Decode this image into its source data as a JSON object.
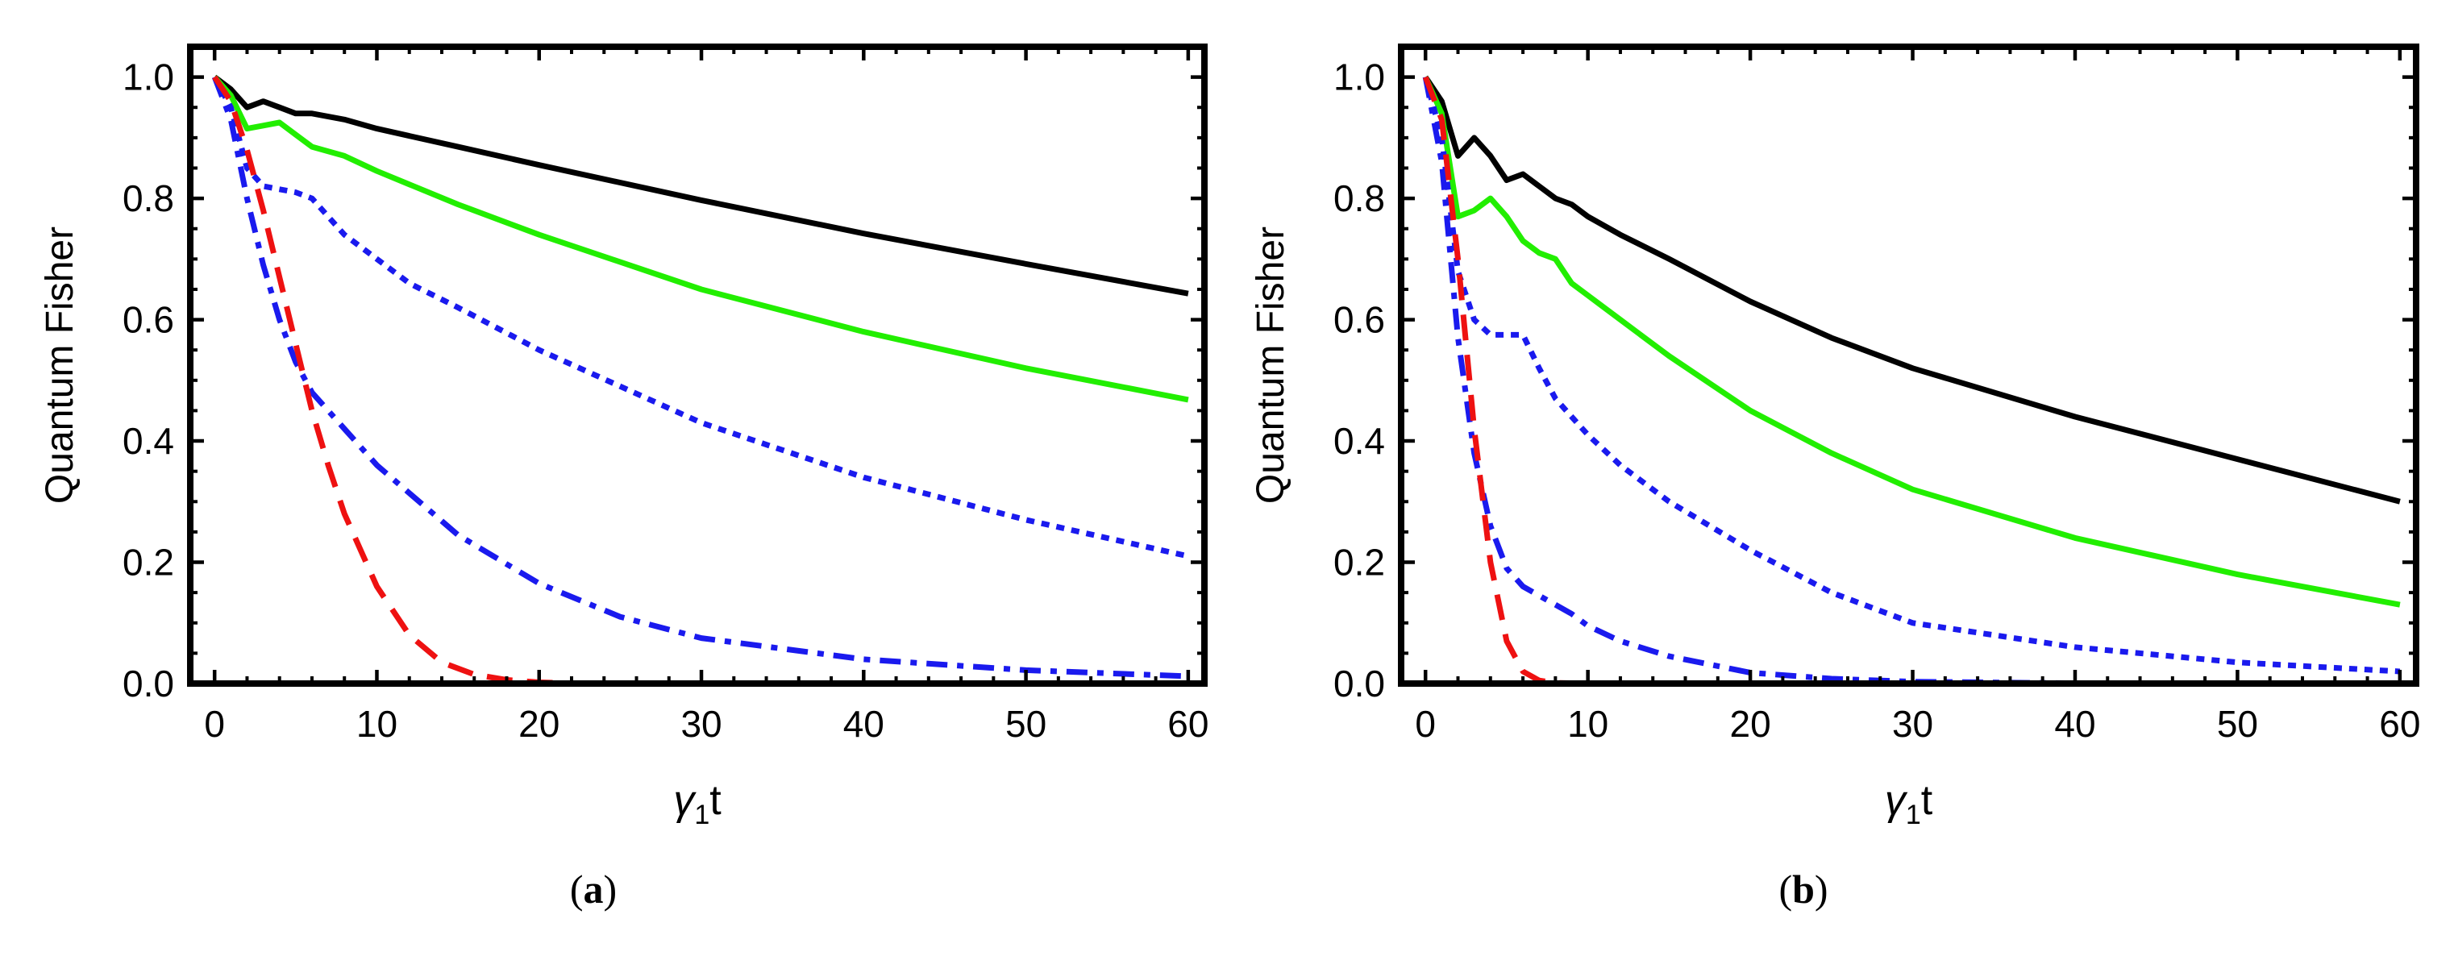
{
  "chart_data": [
    {
      "type": "line",
      "panel_label": "(a)",
      "panel_letter": "a",
      "xlabel": "γ₁t",
      "xlabel_symbol": "γ",
      "xlabel_sub": "1",
      "xlabel_tail": "t",
      "ylabel": "Quantum Fisher",
      "xlim": [
        -1.5,
        61
      ],
      "ylim": [
        0,
        1.05
      ],
      "xticks": [
        0,
        10,
        20,
        30,
        40,
        50,
        60
      ],
      "xtick_labels": [
        "0",
        "10",
        "20",
        "30",
        "40",
        "50",
        "60"
      ],
      "yticks": [
        0.0,
        0.2,
        0.4,
        0.6,
        0.8,
        1.0
      ],
      "ytick_labels": [
        "0.0",
        "0.2",
        "0.4",
        "0.6",
        "0.8",
        "1.0"
      ],
      "series": [
        {
          "name": "black-solid",
          "color": "#000000",
          "dash": "solid",
          "x": [
            0,
            1,
            2,
            3,
            4,
            5,
            6,
            8,
            10,
            15,
            20,
            30,
            40,
            50,
            60
          ],
          "y": [
            1.0,
            0.98,
            0.95,
            0.96,
            0.95,
            0.94,
            0.94,
            0.93,
            0.915,
            0.885,
            0.855,
            0.797,
            0.742,
            0.692,
            0.643
          ]
        },
        {
          "name": "green-solid",
          "color": "#22ee00",
          "dash": "solid",
          "x": [
            0,
            1,
            2,
            3,
            4,
            5,
            6,
            8,
            10,
            15,
            20,
            30,
            40,
            50,
            60
          ],
          "y": [
            1.0,
            0.97,
            0.915,
            0.92,
            0.925,
            0.905,
            0.885,
            0.87,
            0.845,
            0.79,
            0.74,
            0.65,
            0.58,
            0.52,
            0.468
          ]
        },
        {
          "name": "blue-dotted",
          "color": "#1a1aee",
          "dash": "dot",
          "x": [
            0,
            1,
            2,
            3,
            4,
            5,
            6,
            7,
            8,
            10,
            12,
            15,
            20,
            25,
            30,
            40,
            50,
            60
          ],
          "y": [
            1.0,
            0.95,
            0.85,
            0.82,
            0.815,
            0.81,
            0.8,
            0.77,
            0.74,
            0.7,
            0.66,
            0.62,
            0.55,
            0.49,
            0.43,
            0.34,
            0.27,
            0.21
          ]
        },
        {
          "name": "blue-dotdashed",
          "color": "#1a1aee",
          "dash": "dotdash",
          "x": [
            0,
            1,
            2,
            3,
            4,
            5,
            6,
            8,
            10,
            15,
            20,
            25,
            30,
            40,
            50,
            60
          ],
          "y": [
            1.0,
            0.93,
            0.8,
            0.69,
            0.6,
            0.53,
            0.48,
            0.42,
            0.36,
            0.245,
            0.165,
            0.11,
            0.075,
            0.04,
            0.022,
            0.012
          ]
        },
        {
          "name": "red-dashed",
          "color": "#ee1111",
          "dash": "dash",
          "x": [
            0,
            1,
            2,
            3,
            4,
            5,
            6,
            7,
            8,
            10,
            12,
            14,
            16,
            18,
            20,
            22,
            24
          ],
          "y": [
            1.0,
            0.96,
            0.88,
            0.78,
            0.67,
            0.56,
            0.45,
            0.36,
            0.28,
            0.16,
            0.08,
            0.035,
            0.015,
            0.006,
            0.002,
            0.0005,
            0.0
          ]
        }
      ]
    },
    {
      "type": "line",
      "panel_label": "(b)",
      "panel_letter": "b",
      "xlabel": "γ₁t",
      "xlabel_symbol": "γ",
      "xlabel_sub": "1",
      "xlabel_tail": "t",
      "ylabel": "Quantum Fisher",
      "xlim": [
        -1.5,
        61
      ],
      "ylim": [
        0,
        1.05
      ],
      "xticks": [
        0,
        10,
        20,
        30,
        40,
        50,
        60
      ],
      "xtick_labels": [
        "0",
        "10",
        "20",
        "30",
        "40",
        "50",
        "60"
      ],
      "yticks": [
        0.0,
        0.2,
        0.4,
        0.6,
        0.8,
        1.0
      ],
      "ytick_labels": [
        "0.0",
        "0.2",
        "0.4",
        "0.6",
        "0.8",
        "1.0"
      ],
      "series": [
        {
          "name": "black-solid",
          "color": "#000000",
          "dash": "solid",
          "x": [
            0,
            1,
            2,
            3,
            4,
            5,
            6,
            7,
            8,
            9,
            10,
            12,
            15,
            20,
            25,
            30,
            40,
            50,
            60
          ],
          "y": [
            1.0,
            0.96,
            0.87,
            0.9,
            0.87,
            0.83,
            0.84,
            0.82,
            0.8,
            0.79,
            0.77,
            0.74,
            0.7,
            0.63,
            0.57,
            0.52,
            0.44,
            0.37,
            0.3
          ]
        },
        {
          "name": "green-solid",
          "color": "#22ee00",
          "dash": "solid",
          "x": [
            0,
            1,
            2,
            3,
            4,
            5,
            6,
            7,
            8,
            9,
            10,
            12,
            15,
            20,
            25,
            30,
            40,
            50,
            60
          ],
          "y": [
            1.0,
            0.94,
            0.77,
            0.78,
            0.8,
            0.77,
            0.73,
            0.71,
            0.7,
            0.66,
            0.64,
            0.6,
            0.54,
            0.45,
            0.38,
            0.32,
            0.24,
            0.18,
            0.13
          ]
        },
        {
          "name": "blue-dotted",
          "color": "#1a1aee",
          "dash": "dot",
          "x": [
            0,
            1,
            2,
            3,
            4,
            5,
            6,
            7,
            8,
            9,
            10,
            12,
            15,
            20,
            25,
            30,
            40,
            50,
            60
          ],
          "y": [
            1.0,
            0.9,
            0.68,
            0.6,
            0.575,
            0.575,
            0.575,
            0.52,
            0.47,
            0.44,
            0.41,
            0.36,
            0.3,
            0.22,
            0.15,
            0.1,
            0.06,
            0.035,
            0.02
          ]
        },
        {
          "name": "blue-dotdashed",
          "color": "#1a1aee",
          "dash": "dotdash",
          "x": [
            0,
            1,
            2,
            3,
            4,
            5,
            6,
            7,
            8,
            9,
            10,
            12,
            15,
            20,
            25,
            30,
            40,
            50,
            60
          ],
          "y": [
            1.0,
            0.86,
            0.57,
            0.38,
            0.26,
            0.19,
            0.16,
            0.145,
            0.13,
            0.115,
            0.095,
            0.07,
            0.045,
            0.018,
            0.008,
            0.003,
            0.0005,
            0.0,
            0.0
          ]
        },
        {
          "name": "red-dashed",
          "color": "#ee1111",
          "dash": "dash",
          "x": [
            0,
            1,
            2,
            3,
            4,
            5,
            6,
            7,
            8,
            10,
            12,
            14
          ],
          "y": [
            1.0,
            0.93,
            0.7,
            0.42,
            0.2,
            0.07,
            0.02,
            0.005,
            0.001,
            0.0,
            0.0,
            0.0
          ]
        }
      ]
    }
  ]
}
